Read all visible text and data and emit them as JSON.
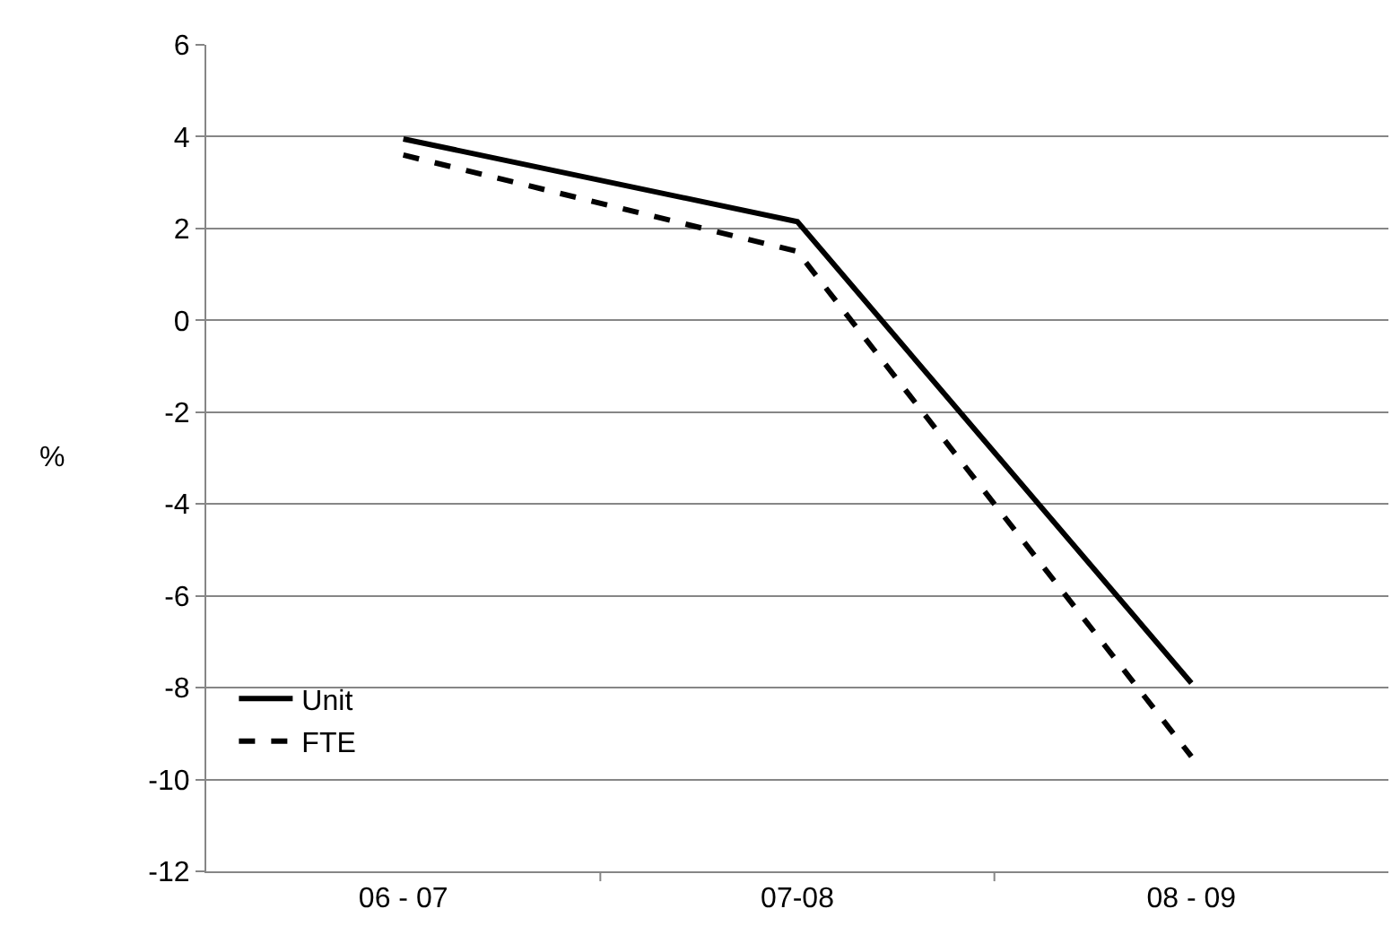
{
  "chart_data": {
    "type": "line",
    "ylabel": "%",
    "categories": [
      "06 - 07",
      "07-08",
      "08 - 09"
    ],
    "series": [
      {
        "name": "Unit",
        "color": "#000000",
        "line_style": "solid",
        "values": [
          3.95,
          2.15,
          -7.9
        ]
      },
      {
        "name": "FTE",
        "color": "#000000",
        "line_style": "dashed",
        "values": [
          3.6,
          1.5,
          -9.5
        ]
      }
    ],
    "ylim": [
      -12,
      6
    ],
    "yticks": [
      -12,
      -10,
      -8,
      -6,
      -4,
      -2,
      0,
      2,
      4,
      6
    ],
    "grid": "y",
    "legend": "bottom left",
    "marker": "none"
  }
}
